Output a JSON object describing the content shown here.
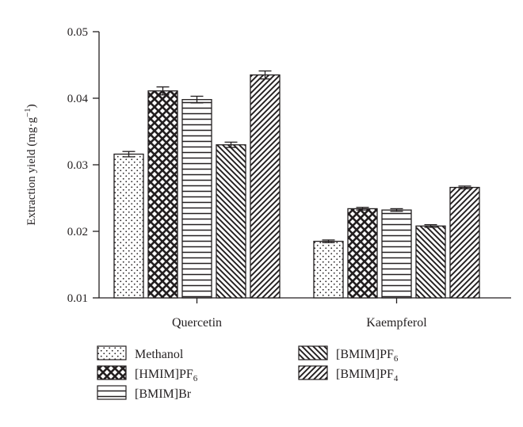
{
  "chart_data": {
    "type": "bar",
    "ylabel": "Extraction yield (mg·g",
    "ylabel_sup": "−1",
    "ylabel_close": ")",
    "ylim": [
      0.01,
      0.05
    ],
    "yticks": [
      0.01,
      0.02,
      0.03,
      0.04,
      0.05
    ],
    "ytick_labels": [
      "0.01",
      "0.02",
      "0.03",
      "0.04",
      "0.05"
    ],
    "categories": [
      "Quercetin",
      "Kaempferol"
    ],
    "series": [
      {
        "name": "Methanol",
        "name_parts": [
          "Methanol"
        ],
        "pattern": "dots",
        "values": [
          0.0316,
          0.0185
        ],
        "errors": [
          0.0004,
          0.0002
        ]
      },
      {
        "name": "[HMIM]PF6",
        "name_parts": [
          "[HMIM]PF",
          "6"
        ],
        "pattern": "crosshatch",
        "values": [
          0.0411,
          0.0234
        ],
        "errors": [
          0.0006,
          0.0002
        ]
      },
      {
        "name": "[BMIM]Br",
        "name_parts": [
          "[BMIM]Br"
        ],
        "pattern": "horizontal",
        "values": [
          0.0398,
          0.0232
        ],
        "errors": [
          0.0005,
          0.0002
        ]
      },
      {
        "name": "[BMIM]PF6",
        "name_parts": [
          "[BMIM]PF",
          "6"
        ],
        "pattern": "diag-back",
        "values": [
          0.033,
          0.0208
        ],
        "errors": [
          0.0004,
          0.0002
        ]
      },
      {
        "name": "[BMIM]PF4",
        "name_parts": [
          "[BMIM]PF",
          "4"
        ],
        "pattern": "diag-forward",
        "values": [
          0.0435,
          0.0266
        ],
        "errors": [
          0.0006,
          0.0002
        ]
      }
    ],
    "legend_position": "bottom",
    "grid": false
  }
}
